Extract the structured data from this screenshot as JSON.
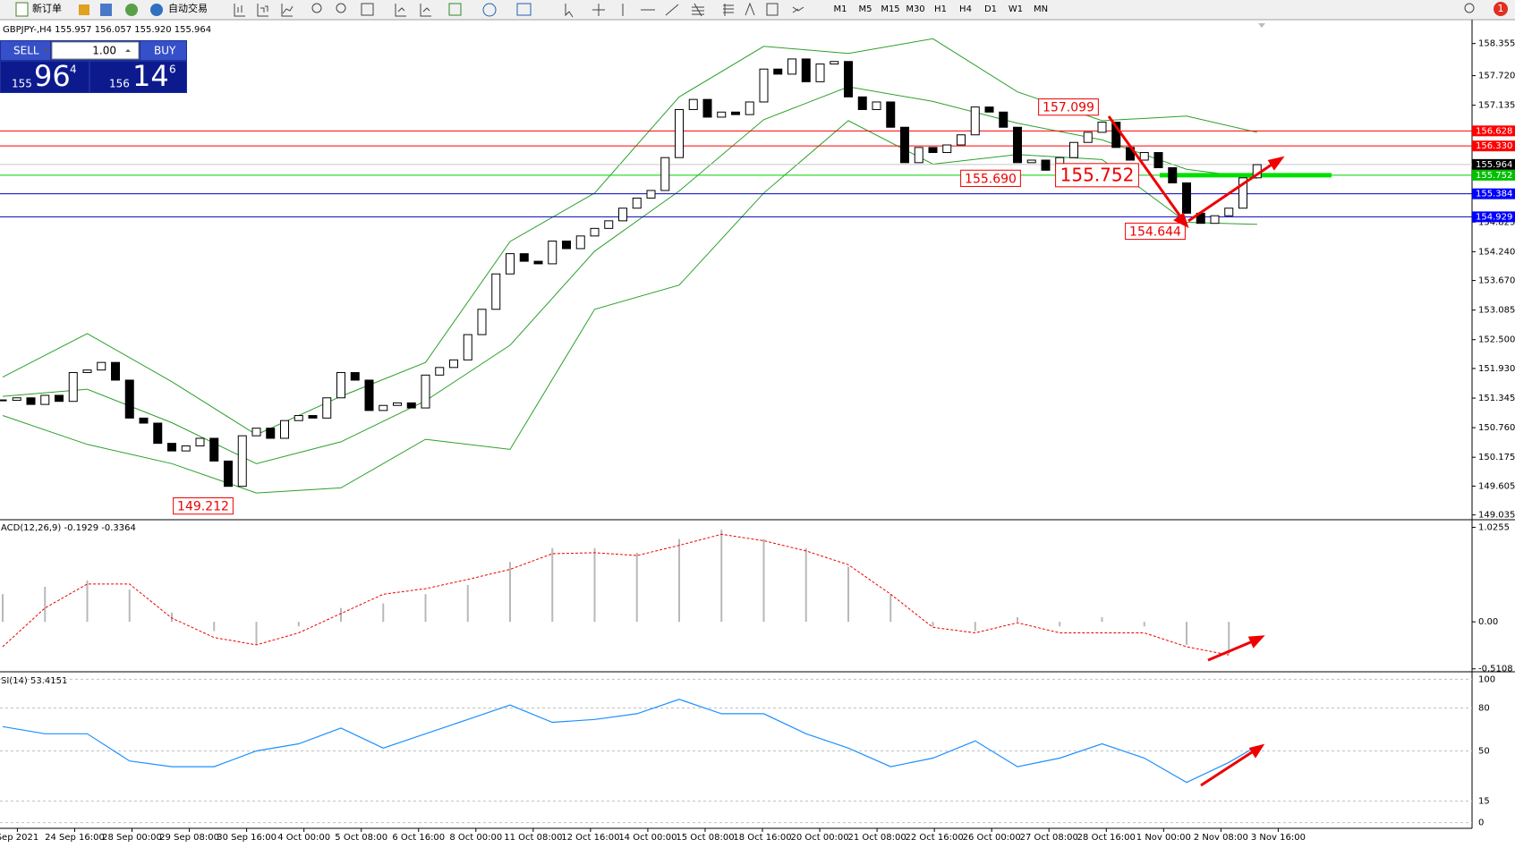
{
  "toolbar": {
    "new_order": "新订单",
    "auto_trading": "自动交易",
    "timeframes": [
      "M1",
      "M5",
      "M15",
      "M30",
      "H1",
      "H4",
      "D1",
      "W1",
      "MN"
    ],
    "notifications": "1"
  },
  "trade_panel": {
    "sell": "SELL",
    "lot": "1.00",
    "buy": "BUY",
    "bid_big": "155",
    "bid_main": "96",
    "bid_sup": "4",
    "ask_big": "156",
    "ask_main": "14",
    "ask_sup": "6"
  },
  "chart_data": {
    "type": "candlestick",
    "title": "GBPJPY-,H4 155.957 156.057 155.920 155.964",
    "x_labels": [
      "Sep 2021",
      "24 Sep 16:00",
      "28 Sep 00:00",
      "29 Sep 08:00",
      "30 Sep 16:00",
      "4 Oct 00:00",
      "5 Oct 08:00",
      "6 Oct 16:00",
      "8 Oct 00:00",
      "11 Oct 08:00",
      "12 Oct 16:00",
      "14 Oct 00:00",
      "15 Oct 08:00",
      "18 Oct 16:00",
      "20 Oct 00:00",
      "21 Oct 08:00",
      "22 Oct 16:00",
      "26 Oct 00:00",
      "27 Oct 08:00",
      "28 Oct 16:00",
      "1 Nov 00:00",
      "2 Nov 08:00",
      "3 Nov 16:00"
    ],
    "close": [
      151.3,
      151.35,
      151.22,
      151.4,
      151.28,
      151.85,
      151.9,
      152.05,
      151.7,
      150.95,
      150.85,
      150.45,
      150.3,
      150.4,
      150.55,
      150.1,
      149.6,
      150.6,
      150.75,
      150.55,
      150.9,
      151.0,
      150.95,
      151.35,
      151.85,
      151.7,
      151.1,
      151.2,
      151.25,
      151.15,
      151.8,
      151.95,
      152.1,
      152.6,
      153.1,
      153.8,
      154.2,
      154.05,
      154.0,
      154.45,
      154.3,
      154.55,
      154.7,
      154.85,
      155.1,
      155.3,
      155.45,
      156.1,
      157.05,
      157.25,
      156.9,
      157.0,
      156.95,
      157.2,
      157.85,
      157.75,
      158.05,
      157.6,
      157.95,
      158.0,
      157.3,
      157.05,
      157.2,
      156.7,
      156.0,
      156.3,
      156.2,
      156.35,
      156.55,
      157.1,
      157.0,
      156.7,
      156.0,
      156.05,
      155.85,
      156.1,
      156.4,
      156.6,
      156.8,
      156.3,
      156.05,
      156.2,
      155.9,
      155.6,
      155.0,
      154.8,
      154.95,
      155.1,
      155.7,
      155.96
    ],
    "ylim": [
      148.958,
      158.756
    ],
    "yticks": [
      {
        "value": 158.355,
        "label": "158.355"
      },
      {
        "value": 157.72,
        "label": "157.720"
      },
      {
        "value": 157.135,
        "label": "157.135"
      },
      {
        "value": 154.825,
        "label": "154.825"
      },
      {
        "value": 154.24,
        "label": "154.240"
      },
      {
        "value": 153.67,
        "label": "153.670"
      },
      {
        "value": 153.085,
        "label": "153.085"
      },
      {
        "value": 152.5,
        "label": "152.500"
      },
      {
        "value": 151.93,
        "label": "151.930"
      },
      {
        "value": 151.345,
        "label": "151.345"
      },
      {
        "value": 150.76,
        "label": "150.760"
      },
      {
        "value": 150.175,
        "label": "150.175"
      },
      {
        "value": 149.605,
        "label": "149.605"
      },
      {
        "value": 149.035,
        "label": "149.035"
      }
    ],
    "bands": {
      "color": "#2ca02c",
      "x": [
        0,
        6,
        12,
        18,
        24,
        30,
        36,
        42,
        48,
        54,
        60,
        66,
        72,
        78,
        84,
        89
      ],
      "upper": [
        151.76,
        152.62,
        151.67,
        150.62,
        151.38,
        152.05,
        154.44,
        155.4,
        157.3,
        158.3,
        158.16,
        158.45,
        157.4,
        156.83,
        156.92,
        156.6
      ],
      "middle": [
        151.38,
        151.52,
        150.86,
        150.05,
        150.48,
        151.29,
        152.39,
        154.25,
        155.44,
        156.85,
        157.5,
        157.21,
        156.78,
        156.45,
        155.87,
        155.69
      ],
      "lower": [
        151.0,
        150.43,
        150.05,
        149.47,
        149.57,
        150.53,
        150.33,
        153.1,
        153.58,
        155.4,
        156.83,
        155.97,
        156.16,
        156.06,
        154.82,
        154.78
      ]
    },
    "levels": [
      {
        "value": 156.628,
        "label": "156.628",
        "color": "#ff0000",
        "line_color": "#ff0000"
      },
      {
        "value": 156.33,
        "label": "156.330",
        "color": "#ff0000",
        "line_color": "#ff0000"
      },
      {
        "value": 155.964,
        "label": "155.964",
        "color": "#000000",
        "line_color": "#c8c8c8"
      },
      {
        "value": 155.752,
        "label": "155.752",
        "color": "#00c000",
        "line_color": "#00d000"
      },
      {
        "value": 155.384,
        "label": "155.384",
        "color": "#0000ff",
        "line_color": "#0000c0"
      },
      {
        "value": 154.929,
        "label": "154.929",
        "color": "#0000ff",
        "line_color": "#0000c0"
      }
    ],
    "annotations": [
      {
        "value": 149.212,
        "label": "149.212"
      },
      {
        "value": 157.099,
        "label": "157.099"
      },
      {
        "value": 155.69,
        "label": "155.690"
      },
      {
        "value": 155.752,
        "label": "155.752"
      },
      {
        "value": 154.644,
        "label": "154.644"
      }
    ],
    "macd": {
      "header": "ACD(12,26,9) -0.1929 -0.3364",
      "ylim": [
        -0.523,
        1.099
      ],
      "yticks": [
        1.0255,
        {
          "value": 0,
          "label": "0.00"
        },
        -0.5108
      ],
      "x": [
        0,
        3,
        6,
        9,
        12,
        15,
        18,
        21,
        24,
        27,
        30,
        33,
        36,
        39,
        42,
        45,
        48,
        51,
        54,
        57,
        60,
        63,
        66,
        69,
        72,
        75,
        78,
        81,
        84,
        87
      ],
      "histogram": [
        0.3,
        0.38,
        0.45,
        0.35,
        0.1,
        -0.1,
        -0.25,
        -0.05,
        0.15,
        0.2,
        0.3,
        0.4,
        0.65,
        0.8,
        0.8,
        0.75,
        0.9,
        1.0,
        0.9,
        0.8,
        0.6,
        0.3,
        -0.05,
        -0.1,
        0.05,
        -0.05,
        0.05,
        -0.05,
        -0.25,
        -0.35
      ],
      "signal": [
        -0.27,
        0.15,
        0.41,
        0.41,
        0.04,
        -0.17,
        -0.25,
        -0.12,
        0.09,
        0.3,
        0.36,
        0.46,
        0.57,
        0.74,
        0.75,
        0.72,
        0.83,
        0.95,
        0.88,
        0.77,
        0.62,
        0.3,
        -0.06,
        -0.12,
        -0.01,
        -0.12,
        -0.12,
        -0.12,
        -0.27,
        -0.36
      ]
    },
    "rsi": {
      "header": "SI(14) 53.4151",
      "ylim": [
        -4,
        104
      ],
      "yticks": [
        100,
        80,
        50,
        15,
        0
      ],
      "color": "#1e90ff",
      "x": [
        0,
        3,
        6,
        9,
        12,
        15,
        18,
        21,
        24,
        27,
        30,
        33,
        36,
        39,
        42,
        45,
        48,
        51,
        54,
        57,
        60,
        63,
        66,
        69,
        72,
        75,
        78,
        81,
        84,
        87,
        89
      ],
      "values": [
        67,
        62,
        62,
        43,
        39,
        39,
        50,
        55,
        66,
        52,
        62,
        72,
        82,
        70,
        72,
        76,
        86,
        76,
        76,
        62,
        52,
        39,
        45,
        57,
        39,
        45,
        55,
        45,
        28,
        42,
        53.4151
      ]
    }
  }
}
